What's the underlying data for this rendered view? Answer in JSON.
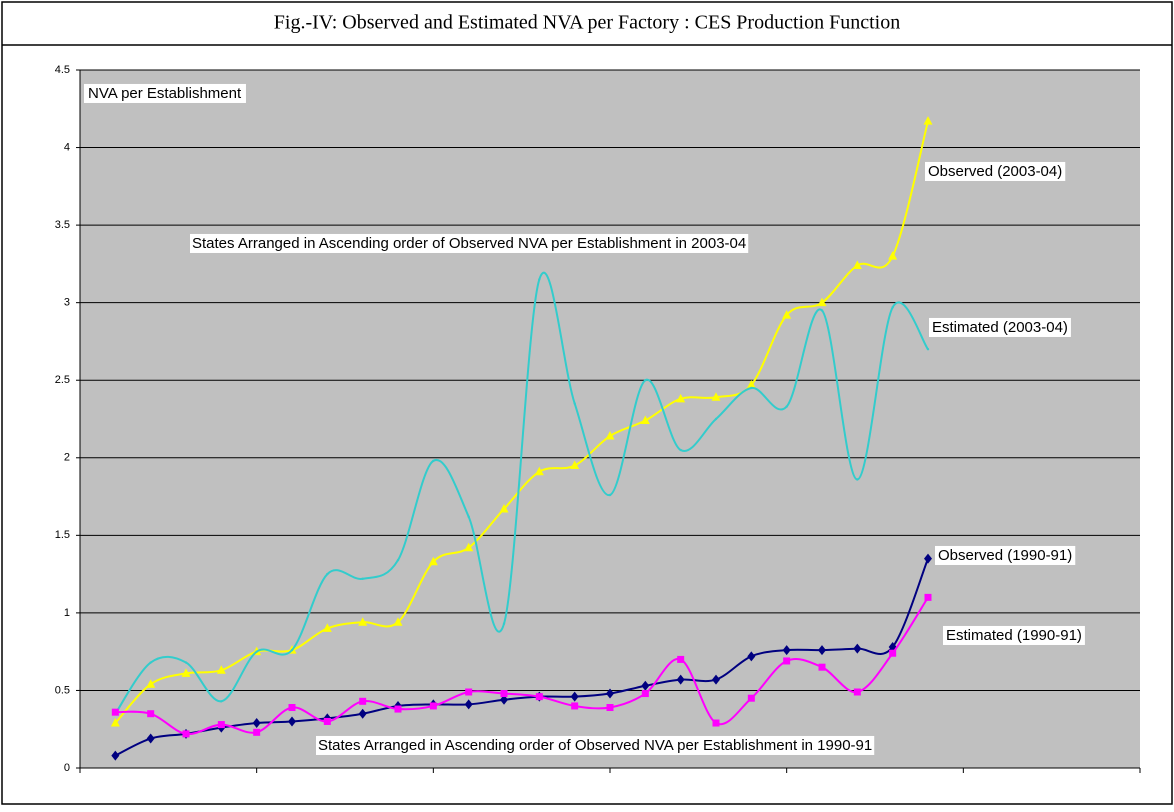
{
  "chart_data": {
    "type": "line",
    "title": "Fig.-IV: Observed and Estimated NVA per Factory : CES Production Function",
    "ylabel": "NVA  per Establishment",
    "annotations": [
      "States Arranged in Ascending order of Observed NVA  per Establishment in 2003-04",
      "States Arranged in Ascending order of Observed NVA  per Establishment in 1990-91"
    ],
    "x": [
      1,
      2,
      3,
      4,
      5,
      6,
      7,
      8,
      9,
      10,
      11,
      12,
      13,
      14,
      15,
      16,
      17,
      18,
      19,
      20,
      21,
      22,
      23,
      24
    ],
    "xlim": [
      0,
      30
    ],
    "xticks": [
      0,
      5,
      10,
      15,
      20,
      25,
      30
    ],
    "ylim": [
      0,
      4.5
    ],
    "yticks": [
      0,
      0.5,
      1,
      1.5,
      2,
      2.5,
      3,
      3.5,
      4,
      4.5
    ],
    "grid": true,
    "series": [
      {
        "name": "Observed (2003-04)",
        "color": "#ffff00",
        "marker": "triangle",
        "values": [
          0.29,
          0.54,
          0.61,
          0.63,
          0.75,
          0.76,
          0.9,
          0.94,
          0.94,
          1.33,
          1.42,
          1.67,
          1.91,
          1.95,
          2.14,
          2.24,
          2.38,
          2.39,
          2.47,
          2.92,
          3.0,
          3.24,
          3.3,
          4.17
        ]
      },
      {
        "name": "Estimated (2003-04)",
        "color": "#33cccc",
        "marker": "none",
        "values": [
          0.35,
          0.68,
          0.68,
          0.43,
          0.75,
          0.76,
          1.25,
          1.22,
          1.34,
          1.98,
          1.62,
          0.93,
          3.15,
          2.35,
          1.76,
          2.5,
          2.05,
          2.25,
          2.45,
          2.33,
          2.95,
          1.86,
          2.97,
          2.7
        ]
      },
      {
        "name": "Observed (1990-91)",
        "color": "#000080",
        "marker": "diamond",
        "values": [
          0.08,
          0.19,
          0.22,
          0.26,
          0.29,
          0.3,
          0.32,
          0.35,
          0.4,
          0.41,
          0.41,
          0.44,
          0.46,
          0.46,
          0.48,
          0.53,
          0.57,
          0.57,
          0.72,
          0.76,
          0.76,
          0.77,
          0.78,
          1.35
        ]
      },
      {
        "name": "Estimated (1990-91)",
        "color": "#ff00ff",
        "marker": "square",
        "values": [
          0.36,
          0.35,
          0.22,
          0.28,
          0.23,
          0.39,
          0.3,
          0.43,
          0.38,
          0.4,
          0.49,
          0.48,
          0.46,
          0.4,
          0.39,
          0.48,
          0.7,
          0.29,
          0.45,
          0.69,
          0.65,
          0.49,
          0.74,
          1.1
        ]
      }
    ]
  }
}
